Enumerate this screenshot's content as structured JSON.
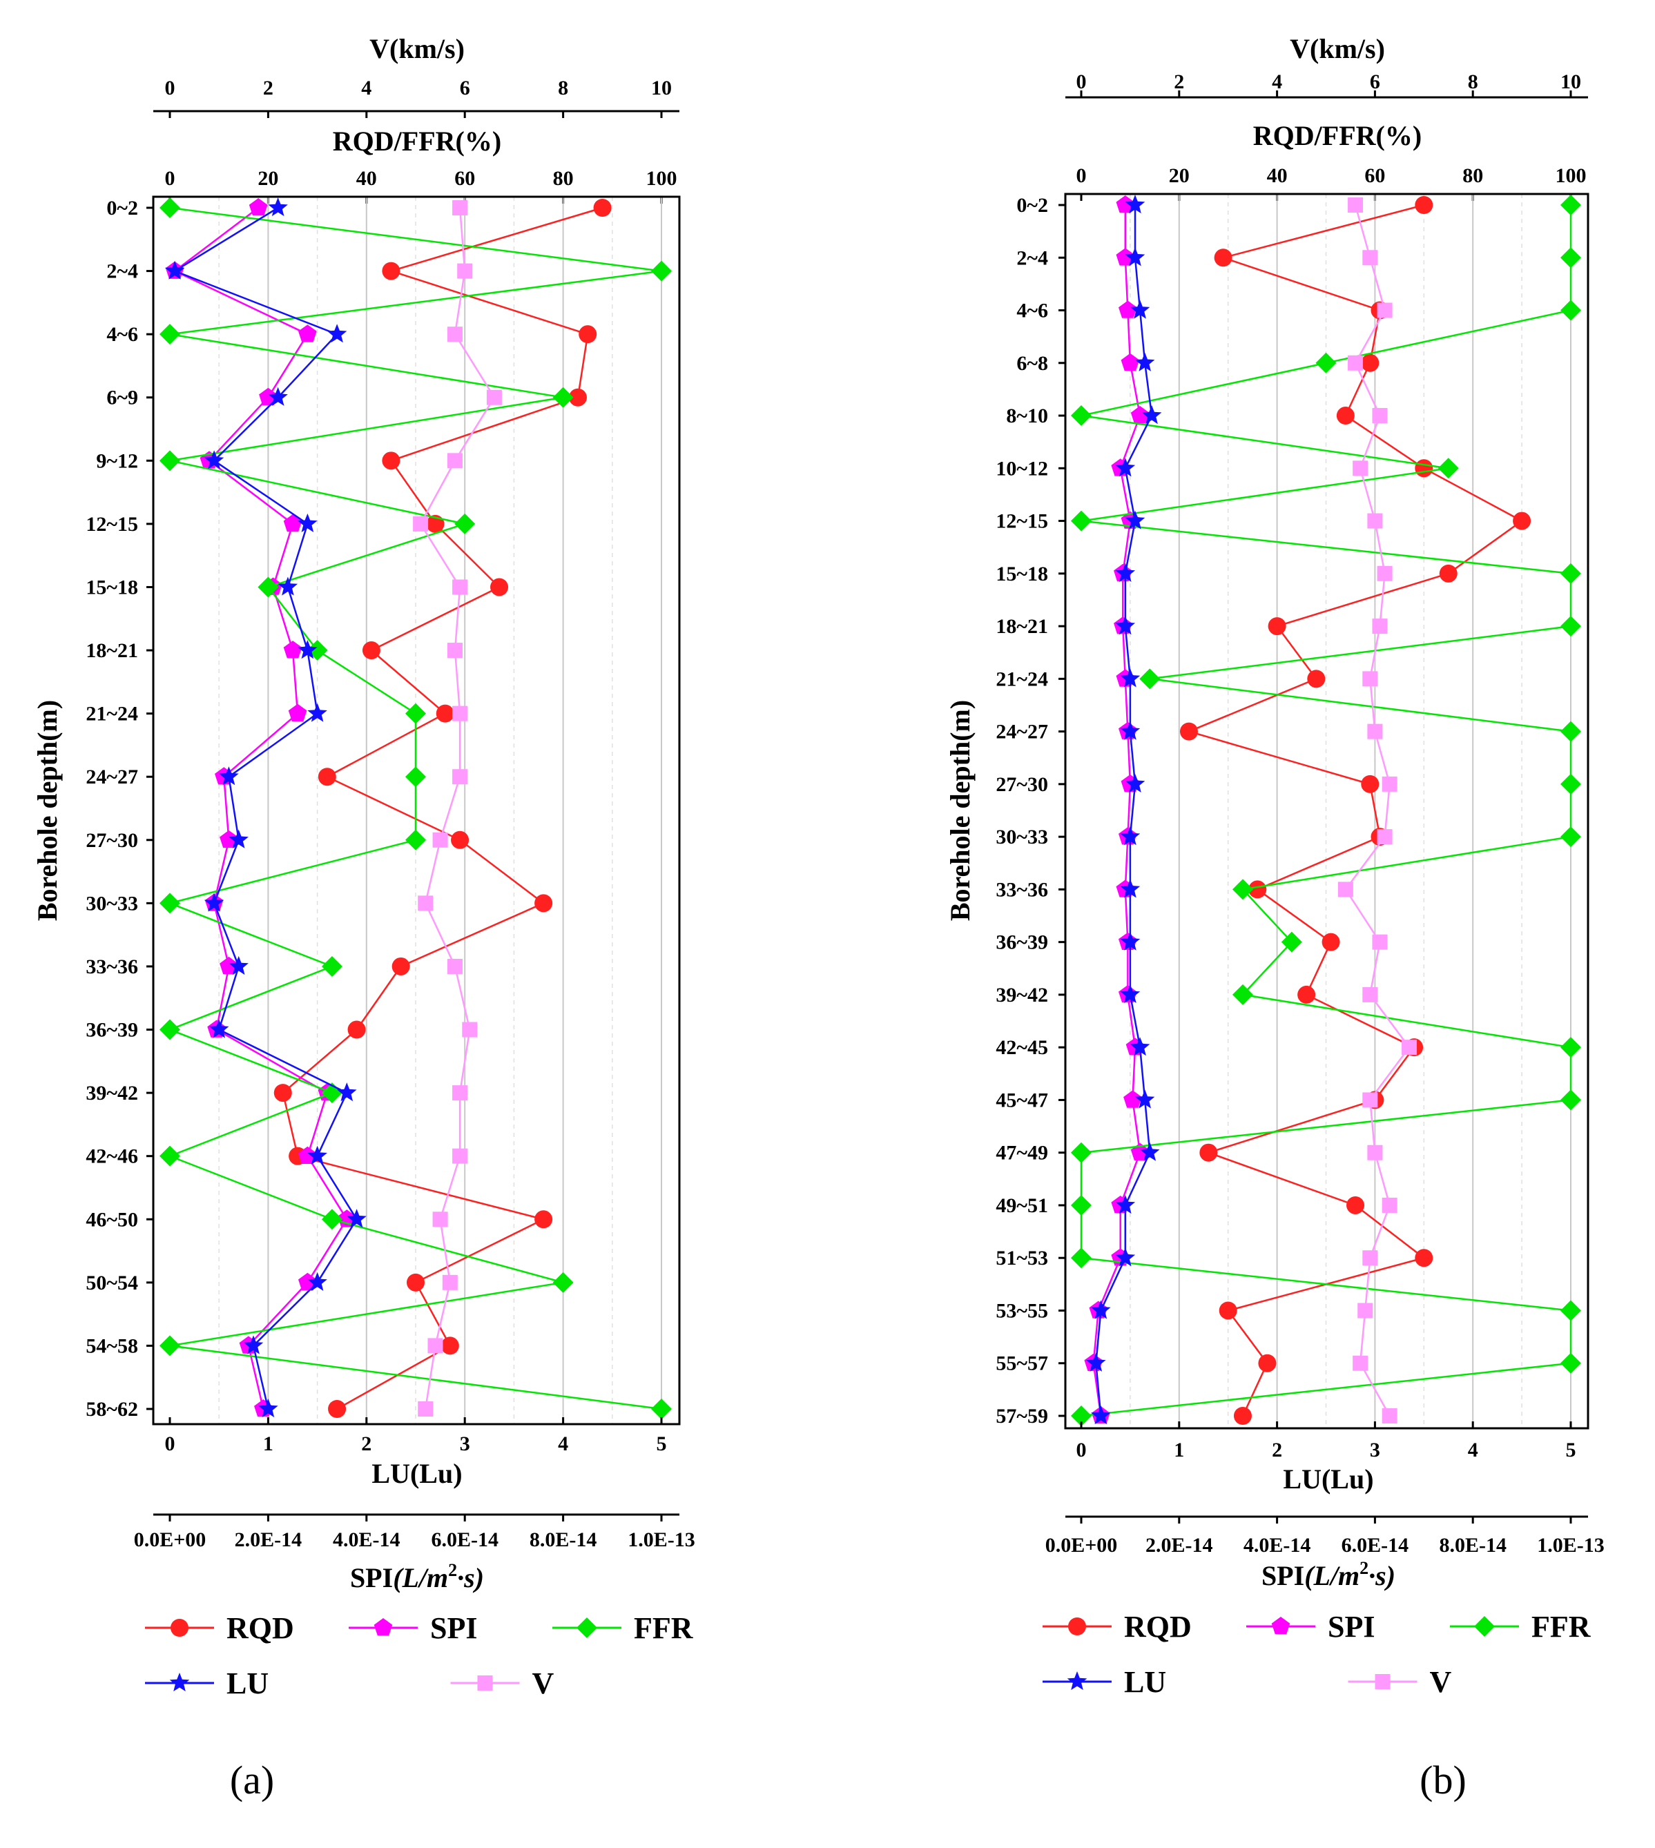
{
  "chart_data": [
    {
      "type": "line",
      "panel_label": "(a)",
      "y_axis": {
        "label": "Borehole depth(m)",
        "categories": [
          "0~2",
          "2~4",
          "4~6",
          "6~9",
          "9~12",
          "12~15",
          "15~18",
          "18~21",
          "21~24",
          "24~27",
          "27~30",
          "30~33",
          "33~36",
          "36~39",
          "39~42",
          "42~46",
          "46~50",
          "50~54",
          "54~58",
          "58~62"
        ]
      },
      "axes": {
        "V": {
          "label": "V(km/s)",
          "range": [
            0,
            10
          ],
          "ticks": [
            "0",
            "2",
            "4",
            "6",
            "8",
            "10"
          ],
          "position": "top"
        },
        "RQD_FFR": {
          "label": "RQD/FFR(%)",
          "range": [
            0,
            100
          ],
          "ticks": [
            "0",
            "20",
            "40",
            "60",
            "80",
            "100"
          ],
          "position": "top"
        },
        "LU": {
          "label": "LU(Lu)",
          "range": [
            0,
            5
          ],
          "ticks": [
            "0",
            "1",
            "2",
            "3",
            "4",
            "5"
          ],
          "position": "bottom"
        },
        "SPI": {
          "label_main": "SPI",
          "label_units": "(L/m",
          "label_sup": "2",
          "label_tail": "·s)",
          "range": [
            0,
            1e-13
          ],
          "ticks": [
            "0.0E+00",
            "2.0E-14",
            "4.0E-14",
            "6.0E-14",
            "8.0E-14",
            "1.0E-13"
          ],
          "position": "bottom"
        }
      },
      "grid": true,
      "series": [
        {
          "name": "RQD",
          "axis": "RQD_FFR",
          "color": "#ff2020",
          "marker": "circle",
          "values": [
            88,
            45,
            85,
            83,
            45,
            54,
            67,
            41,
            56,
            32,
            59,
            76,
            47,
            38,
            23,
            26,
            76,
            50,
            57,
            34
          ]
        },
        {
          "name": "SPI",
          "axis": "SPI",
          "color": "#ff00ff",
          "marker": "pentagon",
          "values": [
            1.8e-14,
            1e-15,
            2.8e-14,
            2e-14,
            8e-15,
            2.5e-14,
            2.1e-14,
            2.5e-14,
            2.6e-14,
            1.1e-14,
            1.2e-14,
            9e-15,
            1.2e-14,
            9.5e-15,
            3.2e-14,
            2.8e-14,
            3.6e-14,
            2.8e-14,
            1.6e-14,
            1.9e-14
          ]
        },
        {
          "name": "FFR",
          "axis": "RQD_FFR",
          "color": "#00e600",
          "marker": "diamond",
          "values": [
            0,
            100,
            0,
            80,
            0,
            60,
            20,
            30,
            50,
            50,
            50,
            0,
            33,
            0,
            33,
            0,
            33,
            80,
            0,
            100
          ]
        },
        {
          "name": "LU",
          "axis": "LU",
          "color": "#1010ff",
          "marker": "star",
          "values": [
            1.1,
            0.05,
            1.7,
            1.1,
            0.45,
            1.4,
            1.2,
            1.4,
            1.5,
            0.6,
            0.7,
            0.45,
            0.7,
            0.5,
            1.8,
            1.5,
            1.9,
            1.5,
            0.85,
            1.0
          ]
        },
        {
          "name": "V",
          "axis": "V",
          "color": "#ff99ff",
          "marker": "square",
          "values": [
            5.9,
            6.0,
            5.8,
            6.6,
            5.8,
            5.1,
            5.9,
            5.8,
            5.9,
            5.9,
            5.5,
            5.2,
            5.8,
            6.1,
            5.9,
            5.9,
            5.5,
            5.7,
            5.4,
            5.2
          ]
        }
      ],
      "legend": {
        "row1": [
          "RQD",
          "SPI",
          "FFR"
        ],
        "row2": [
          "LU",
          "V"
        ]
      }
    },
    {
      "type": "line",
      "panel_label": "(b)",
      "y_axis": {
        "label": "Borehole depth(m)",
        "categories": [
          "0~2",
          "2~4",
          "4~6",
          "6~8",
          "8~10",
          "10~12",
          "12~15",
          "15~18",
          "18~21",
          "21~24",
          "24~27",
          "27~30",
          "30~33",
          "33~36",
          "36~39",
          "39~42",
          "42~45",
          "45~47",
          "47~49",
          "49~51",
          "51~53",
          "53~55",
          "55~57",
          "57~59"
        ]
      },
      "axes": {
        "V": {
          "label": "V(km/s)",
          "range": [
            0,
            10
          ],
          "ticks": [
            "0",
            "2",
            "4",
            "6",
            "8",
            "10"
          ],
          "position": "top"
        },
        "RQD_FFR": {
          "label": "RQD/FFR(%)",
          "range": [
            0,
            100
          ],
          "ticks": [
            "0",
            "20",
            "40",
            "60",
            "80",
            "100"
          ],
          "position": "top"
        },
        "LU": {
          "label": "LU(Lu)",
          "range": [
            0,
            5
          ],
          "ticks": [
            "0",
            "1",
            "2",
            "3",
            "4",
            "5"
          ],
          "position": "bottom"
        },
        "SPI": {
          "label_main": "SPI",
          "label_units": "(L/m",
          "label_sup": "2",
          "label_tail": "·s)",
          "range": [
            0,
            1e-13
          ],
          "ticks": [
            "0.0E+00",
            "2.0E-14",
            "4.0E-14",
            "6.0E-14",
            "8.0E-14",
            "1.0E-13"
          ],
          "position": "bottom"
        }
      },
      "grid": true,
      "series": [
        {
          "name": "RQD",
          "axis": "RQD_FFR",
          "color": "#ff2020",
          "marker": "circle",
          "values": [
            70,
            29,
            61,
            59,
            54,
            70,
            90,
            75,
            40,
            48,
            22,
            59,
            61,
            36,
            51,
            46,
            68,
            60,
            26,
            56,
            70,
            30,
            38,
            33
          ]
        },
        {
          "name": "SPI",
          "axis": "SPI",
          "color": "#ff00ff",
          "marker": "pentagon",
          "values": [
            9e-15,
            9e-15,
            9.5e-15,
            1e-14,
            1.2e-14,
            8e-15,
            1e-14,
            8.5e-15,
            8.5e-15,
            9e-15,
            9.5e-15,
            1e-14,
            9.5e-15,
            9e-15,
            9.5e-15,
            9.5e-15,
            1.1e-14,
            1.05e-14,
            1.2e-14,
            8e-15,
            8e-15,
            3.5e-15,
            2.5e-15,
            4e-15
          ]
        },
        {
          "name": "FFR",
          "axis": "RQD_FFR",
          "color": "#00e600",
          "marker": "diamond",
          "values": [
            100,
            100,
            100,
            50,
            0,
            75,
            0,
            100,
            100,
            14,
            100,
            100,
            100,
            33,
            43,
            33,
            100,
            100,
            0,
            0,
            0,
            100,
            100,
            0
          ]
        },
        {
          "name": "LU",
          "axis": "LU",
          "color": "#1010ff",
          "marker": "star",
          "values": [
            0.55,
            0.55,
            0.6,
            0.65,
            0.72,
            0.45,
            0.55,
            0.45,
            0.45,
            0.5,
            0.5,
            0.55,
            0.5,
            0.5,
            0.5,
            0.5,
            0.6,
            0.65,
            0.7,
            0.45,
            0.45,
            0.2,
            0.15,
            0.2
          ]
        },
        {
          "name": "V",
          "axis": "V",
          "color": "#ff99ff",
          "marker": "square",
          "values": [
            5.6,
            5.9,
            6.2,
            5.6,
            6.1,
            5.7,
            6.0,
            6.2,
            6.1,
            5.9,
            6.0,
            6.3,
            6.2,
            5.4,
            6.1,
            5.9,
            6.7,
            5.9,
            6.0,
            6.3,
            5.9,
            5.8,
            5.7,
            6.3
          ]
        }
      ],
      "legend": {
        "row1": [
          "RQD",
          "SPI",
          "FFR"
        ],
        "row2": [
          "LU",
          "V"
        ]
      }
    }
  ]
}
